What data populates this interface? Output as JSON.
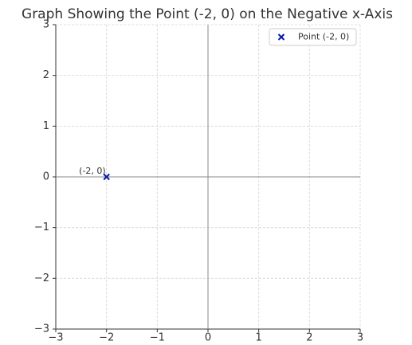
{
  "chart_data": {
    "type": "scatter",
    "title": "Graph Showing the Point (-2, 0) on the Negative x-Axis",
    "series": [
      {
        "name": "Point (-2, 0)",
        "color": "#0a1aa8",
        "marker": "x",
        "x": [
          -2
        ],
        "values": [
          0
        ]
      }
    ],
    "annotations": [
      {
        "text": "(-2, 0)"
      }
    ],
    "xlim": [
      -3,
      3
    ],
    "ylim": [
      -3,
      3
    ],
    "xticks": [
      {
        "value": -3,
        "label": "−3"
      },
      {
        "value": -2,
        "label": "−2"
      },
      {
        "value": -1,
        "label": "−1"
      },
      0,
      1,
      2,
      3
    ],
    "yticks": [
      {
        "value": -3,
        "label": "−3"
      },
      {
        "value": -2,
        "label": "−2"
      },
      {
        "value": -1,
        "label": "−1"
      },
      0,
      1,
      2,
      3
    ],
    "grid": true,
    "zero_lines": true,
    "legend": "upper right"
  }
}
